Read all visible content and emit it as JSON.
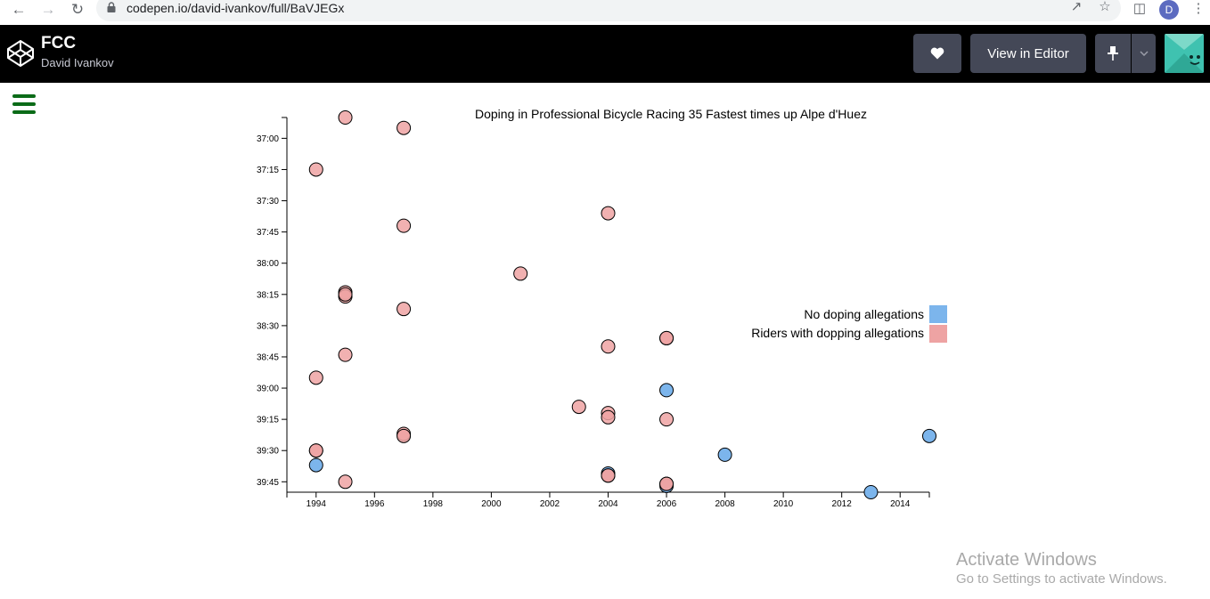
{
  "browser": {
    "url": "codepen.io/david-ivankov/full/BaVJEGx",
    "profile_initial": "D"
  },
  "header": {
    "title": "FCC",
    "author": "David Ivankov",
    "view_in_editor_label": "View in Editor"
  },
  "colors": {
    "no_doping": "#7cb5ec",
    "doping": "#eea3a3",
    "header_bg": "#000000",
    "button_bg": "#444857",
    "hamburger": "#0b6b18"
  },
  "chart_data": {
    "type": "scatter",
    "title": "Doping in Professional Bicycle Racing 35 Fastest times up Alpe d'Huez",
    "xlabel": "",
    "ylabel": "",
    "xlim": [
      1993,
      2015
    ],
    "ylim": [
      "36:50",
      "39:50"
    ],
    "x_ticks": [
      "1994",
      "1996",
      "1998",
      "2000",
      "2002",
      "2004",
      "2006",
      "2008",
      "2010",
      "2012",
      "2014"
    ],
    "y_ticks": [
      "37:00",
      "37:15",
      "37:30",
      "37:45",
      "38:00",
      "38:15",
      "38:30",
      "38:45",
      "39:00",
      "39:15",
      "39:30",
      "39:45"
    ],
    "legend_position": "right",
    "series": [
      {
        "name": "No doping allegations",
        "points": [
          {
            "year": 1994,
            "time": "39:37"
          },
          {
            "year": 2006,
            "time": "39:01"
          },
          {
            "year": 2008,
            "time": "39:32"
          },
          {
            "year": 2013,
            "time": "39:50"
          },
          {
            "year": 2015,
            "time": "39:23"
          },
          {
            "year": 2004,
            "time": "39:41"
          },
          {
            "year": 2006,
            "time": "39:47"
          }
        ]
      },
      {
        "name": "Riders with dopping allegations",
        "points": [
          {
            "year": 1995,
            "time": "36:50"
          },
          {
            "year": 1997,
            "time": "36:55"
          },
          {
            "year": 1994,
            "time": "37:15"
          },
          {
            "year": 2004,
            "time": "37:36"
          },
          {
            "year": 1997,
            "time": "37:42"
          },
          {
            "year": 2001,
            "time": "38:05"
          },
          {
            "year": 1995,
            "time": "38:14"
          },
          {
            "year": 1995,
            "time": "38:16"
          },
          {
            "year": 1995,
            "time": "38:15"
          },
          {
            "year": 1997,
            "time": "38:22"
          },
          {
            "year": 2006,
            "time": "38:36"
          },
          {
            "year": 2006,
            "time": "38:36"
          },
          {
            "year": 2004,
            "time": "38:40"
          },
          {
            "year": 1995,
            "time": "38:44"
          },
          {
            "year": 1994,
            "time": "38:55"
          },
          {
            "year": 2003,
            "time": "39:09"
          },
          {
            "year": 2004,
            "time": "39:12"
          },
          {
            "year": 2004,
            "time": "39:14"
          },
          {
            "year": 2006,
            "time": "39:15"
          },
          {
            "year": 1997,
            "time": "39:22"
          },
          {
            "year": 1997,
            "time": "39:23"
          },
          {
            "year": 1994,
            "time": "39:30"
          },
          {
            "year": 1994,
            "time": "39:30"
          },
          {
            "year": 2004,
            "time": "39:42"
          },
          {
            "year": 1995,
            "time": "39:45"
          },
          {
            "year": 2006,
            "time": "39:46"
          },
          {
            "year": 2006,
            "time": "39:46"
          },
          {
            "year": 2004,
            "time": "39:42"
          }
        ]
      }
    ]
  },
  "watermark": {
    "title": "Activate Windows",
    "subtitle": "Go to Settings to activate Windows."
  }
}
